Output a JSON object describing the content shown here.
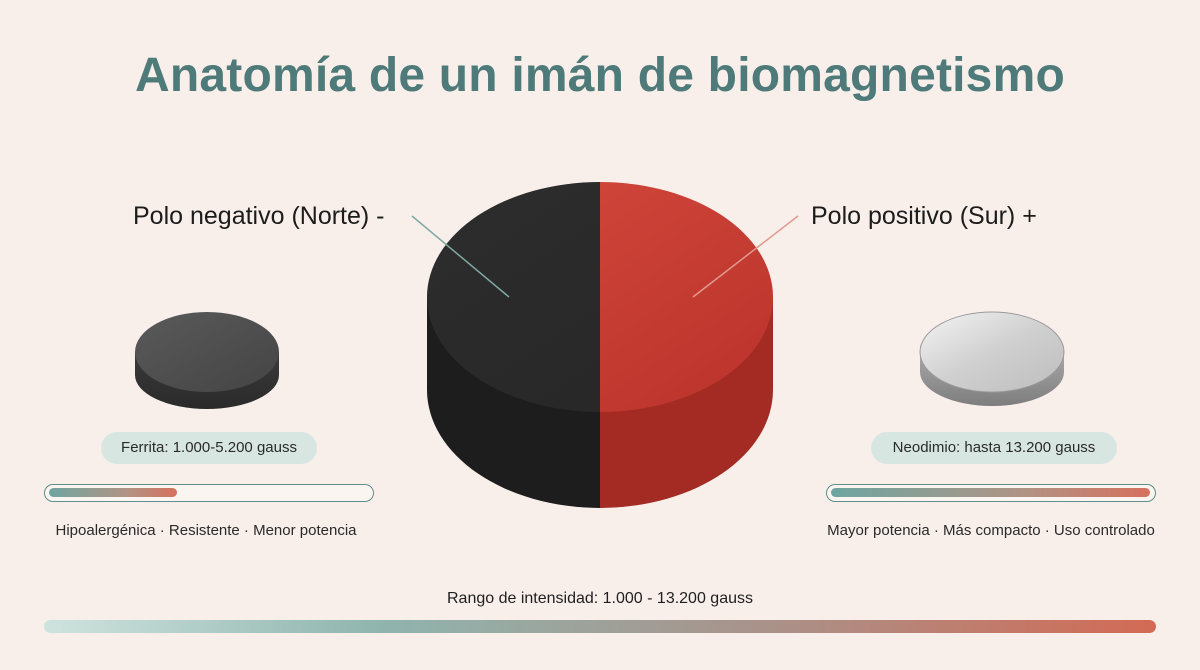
{
  "title": "Anatomía de un imán de biomagnetismo",
  "magnet": {
    "negative_label": "Polo negativo (Norte) -",
    "positive_label": "Polo positivo (Sur) +",
    "negative_color": "#2b2b2b",
    "positive_color": "#c2382f"
  },
  "ferrite": {
    "label": "Ferrita: 1.000-5.200 gauss",
    "features": "Hipoalergénica · Resistente · Menor potencia",
    "level": 0.4,
    "color": "#4a4a4a"
  },
  "neodymium": {
    "label": "Neodimio: hasta 13.200 gauss",
    "features": "Mayor potencia · Más compacto · Uso controlado",
    "level": 1.0,
    "color": "#d9d9d9"
  },
  "range": {
    "label": "Rango de intensidad: 1.000 - 13.200 gauss"
  },
  "colors": {
    "accent": "#4e7a79",
    "background": "#f8efeb",
    "gradient_start": "#6ea5a0",
    "gradient_end": "#d7705e"
  }
}
